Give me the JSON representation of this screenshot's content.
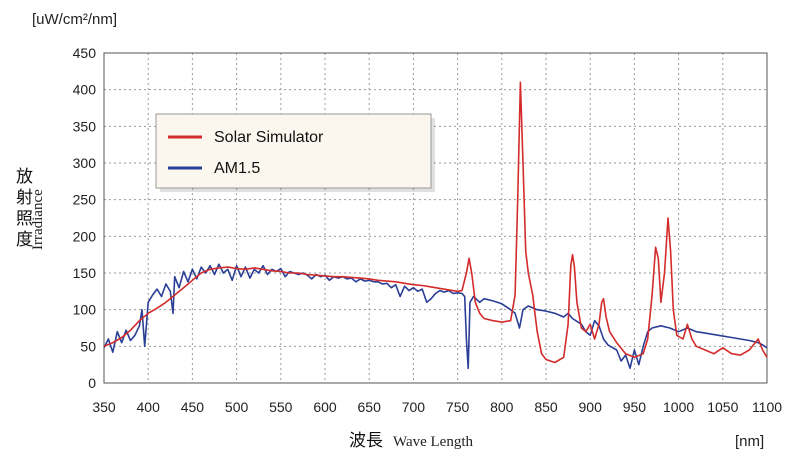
{
  "chart_data": {
    "type": "line",
    "title": "",
    "y_unit": "[uW/cm²/nm]",
    "x_unit": "[nm]",
    "xlabel_jp": "波長",
    "xlabel_en": "Wave Length",
    "ylabel_jp": [
      "放",
      "射",
      "照",
      "度"
    ],
    "ylabel_en": "Irradiance",
    "xlim": [
      350,
      1100
    ],
    "ylim": [
      0,
      450
    ],
    "x_ticks": [
      350,
      400,
      450,
      500,
      550,
      600,
      650,
      700,
      750,
      800,
      850,
      900,
      950,
      1000,
      1050,
      1100
    ],
    "y_ticks": [
      0,
      50,
      100,
      150,
      200,
      250,
      300,
      350,
      400,
      450
    ],
    "grid": true,
    "legend_position": "top-left",
    "series": [
      {
        "name": "Solar Simulator",
        "color": "#d42b2b",
        "points": [
          [
            350,
            50
          ],
          [
            360,
            55
          ],
          [
            370,
            62
          ],
          [
            380,
            72
          ],
          [
            390,
            85
          ],
          [
            400,
            95
          ],
          [
            410,
            102
          ],
          [
            420,
            110
          ],
          [
            430,
            120
          ],
          [
            440,
            130
          ],
          [
            450,
            140
          ],
          [
            460,
            150
          ],
          [
            470,
            155
          ],
          [
            480,
            157
          ],
          [
            490,
            158
          ],
          [
            500,
            156
          ],
          [
            510,
            155
          ],
          [
            520,
            157
          ],
          [
            530,
            155
          ],
          [
            540,
            153
          ],
          [
            550,
            152
          ],
          [
            560,
            150
          ],
          [
            570,
            150
          ],
          [
            580,
            148
          ],
          [
            590,
            147
          ],
          [
            600,
            146
          ],
          [
            610,
            145
          ],
          [
            620,
            145
          ],
          [
            630,
            144
          ],
          [
            640,
            143
          ],
          [
            650,
            142
          ],
          [
            660,
            140
          ],
          [
            670,
            139
          ],
          [
            680,
            138
          ],
          [
            690,
            136
          ],
          [
            700,
            134
          ],
          [
            710,
            133
          ],
          [
            720,
            131
          ],
          [
            730,
            129
          ],
          [
            740,
            127
          ],
          [
            750,
            125
          ],
          [
            755,
            126
          ],
          [
            760,
            150
          ],
          [
            763,
            170
          ],
          [
            766,
            150
          ],
          [
            770,
            110
          ],
          [
            775,
            95
          ],
          [
            780,
            88
          ],
          [
            790,
            85
          ],
          [
            800,
            83
          ],
          [
            810,
            85
          ],
          [
            815,
            120
          ],
          [
            818,
            250
          ],
          [
            821,
            410
          ],
          [
            824,
            300
          ],
          [
            827,
            180
          ],
          [
            830,
            150
          ],
          [
            835,
            120
          ],
          [
            840,
            70
          ],
          [
            845,
            40
          ],
          [
            850,
            32
          ],
          [
            860,
            28
          ],
          [
            870,
            35
          ],
          [
            875,
            80
          ],
          [
            878,
            160
          ],
          [
            880,
            175
          ],
          [
            882,
            160
          ],
          [
            885,
            110
          ],
          [
            890,
            75
          ],
          [
            895,
            70
          ],
          [
            900,
            80
          ],
          [
            905,
            60
          ],
          [
            910,
            80
          ],
          [
            913,
            110
          ],
          [
            915,
            115
          ],
          [
            918,
            90
          ],
          [
            922,
            70
          ],
          [
            930,
            55
          ],
          [
            940,
            40
          ],
          [
            950,
            35
          ],
          [
            960,
            40
          ],
          [
            965,
            60
          ],
          [
            970,
            120
          ],
          [
            974,
            185
          ],
          [
            977,
            170
          ],
          [
            980,
            110
          ],
          [
            984,
            150
          ],
          [
            988,
            225
          ],
          [
            991,
            180
          ],
          [
            994,
            100
          ],
          [
            998,
            65
          ],
          [
            1005,
            60
          ],
          [
            1010,
            80
          ],
          [
            1015,
            60
          ],
          [
            1020,
            50
          ],
          [
            1030,
            45
          ],
          [
            1040,
            40
          ],
          [
            1050,
            48
          ],
          [
            1060,
            40
          ],
          [
            1070,
            38
          ],
          [
            1080,
            45
          ],
          [
            1090,
            60
          ],
          [
            1095,
            45
          ],
          [
            1100,
            35
          ]
        ]
      },
      {
        "name": "AM1.5",
        "color": "#2a3f96",
        "points": [
          [
            350,
            48
          ],
          [
            355,
            60
          ],
          [
            360,
            42
          ],
          [
            365,
            70
          ],
          [
            370,
            55
          ],
          [
            375,
            72
          ],
          [
            380,
            58
          ],
          [
            385,
            65
          ],
          [
            390,
            78
          ],
          [
            393,
            100
          ],
          [
            396,
            50
          ],
          [
            400,
            110
          ],
          [
            405,
            120
          ],
          [
            410,
            128
          ],
          [
            415,
            118
          ],
          [
            420,
            135
          ],
          [
            425,
            125
          ],
          [
            428,
            95
          ],
          [
            430,
            145
          ],
          [
            435,
            130
          ],
          [
            440,
            152
          ],
          [
            445,
            138
          ],
          [
            450,
            155
          ],
          [
            455,
            142
          ],
          [
            460,
            158
          ],
          [
            465,
            150
          ],
          [
            470,
            160
          ],
          [
            475,
            148
          ],
          [
            480,
            162
          ],
          [
            485,
            150
          ],
          [
            490,
            155
          ],
          [
            495,
            140
          ],
          [
            500,
            160
          ],
          [
            505,
            145
          ],
          [
            510,
            158
          ],
          [
            515,
            143
          ],
          [
            520,
            155
          ],
          [
            525,
            150
          ],
          [
            530,
            160
          ],
          [
            535,
            148
          ],
          [
            540,
            155
          ],
          [
            545,
            152
          ],
          [
            550,
            156
          ],
          [
            555,
            145
          ],
          [
            560,
            152
          ],
          [
            565,
            150
          ],
          [
            570,
            148
          ],
          [
            575,
            150
          ],
          [
            580,
            147
          ],
          [
            585,
            142
          ],
          [
            590,
            148
          ],
          [
            595,
            145
          ],
          [
            600,
            147
          ],
          [
            605,
            140
          ],
          [
            610,
            145
          ],
          [
            615,
            143
          ],
          [
            620,
            145
          ],
          [
            625,
            142
          ],
          [
            630,
            143
          ],
          [
            635,
            138
          ],
          [
            640,
            142
          ],
          [
            645,
            139
          ],
          [
            650,
            140
          ],
          [
            655,
            138
          ],
          [
            660,
            138
          ],
          [
            665,
            135
          ],
          [
            670,
            136
          ],
          [
            675,
            130
          ],
          [
            680,
            134
          ],
          [
            685,
            118
          ],
          [
            690,
            132
          ],
          [
            695,
            126
          ],
          [
            700,
            130
          ],
          [
            705,
            125
          ],
          [
            710,
            128
          ],
          [
            715,
            110
          ],
          [
            720,
            115
          ],
          [
            725,
            122
          ],
          [
            730,
            126
          ],
          [
            735,
            124
          ],
          [
            740,
            126
          ],
          [
            745,
            122
          ],
          [
            750,
            123
          ],
          [
            755,
            122
          ],
          [
            758,
            118
          ],
          [
            760,
            60
          ],
          [
            762,
            20
          ],
          [
            764,
            110
          ],
          [
            768,
            118
          ],
          [
            775,
            110
          ],
          [
            780,
            115
          ],
          [
            790,
            112
          ],
          [
            800,
            108
          ],
          [
            810,
            100
          ],
          [
            815,
            95
          ],
          [
            820,
            75
          ],
          [
            824,
            100
          ],
          [
            830,
            105
          ],
          [
            840,
            100
          ],
          [
            850,
            98
          ],
          [
            860,
            95
          ],
          [
            870,
            90
          ],
          [
            875,
            95
          ],
          [
            880,
            88
          ],
          [
            890,
            80
          ],
          [
            895,
            70
          ],
          [
            900,
            65
          ],
          [
            905,
            85
          ],
          [
            910,
            78
          ],
          [
            915,
            60
          ],
          [
            920,
            52
          ],
          [
            930,
            45
          ],
          [
            935,
            30
          ],
          [
            940,
            38
          ],
          [
            945,
            20
          ],
          [
            950,
            45
          ],
          [
            955,
            25
          ],
          [
            960,
            50
          ],
          [
            965,
            70
          ],
          [
            970,
            75
          ],
          [
            980,
            78
          ],
          [
            990,
            75
          ],
          [
            1000,
            70
          ],
          [
            1010,
            75
          ],
          [
            1020,
            70
          ],
          [
            1030,
            68
          ],
          [
            1040,
            66
          ],
          [
            1050,
            64
          ],
          [
            1060,
            62
          ],
          [
            1070,
            60
          ],
          [
            1080,
            58
          ],
          [
            1090,
            55
          ],
          [
            1095,
            52
          ],
          [
            1100,
            48
          ]
        ]
      }
    ]
  }
}
